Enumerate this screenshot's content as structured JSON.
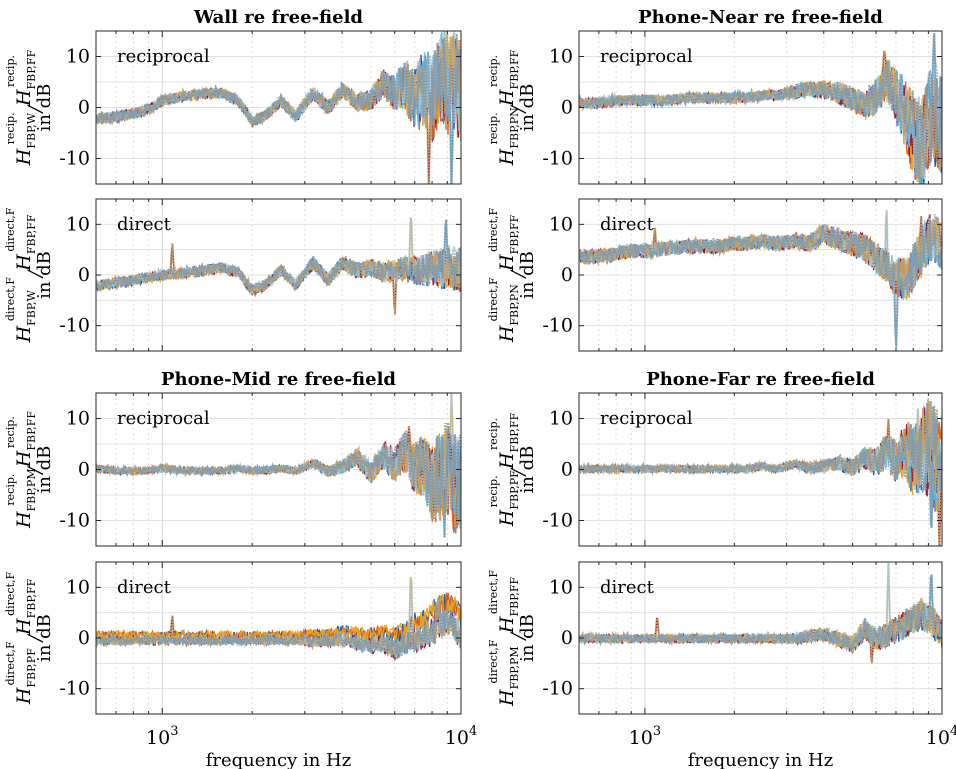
{
  "figure": {
    "xlabel": "frequency in Hz",
    "ylabel_unit": "in dB",
    "colors": [
      "#0b56b0",
      "#e05a12",
      "#eaa31a",
      "#9b1030",
      "#5bbbe8",
      "#a9c4d4",
      "#c7a060",
      "#7f9cb0",
      "#c97a6a",
      "#2c8fd6"
    ]
  },
  "chart_data": [
    {
      "type": "line",
      "title": "Wall re free-field",
      "subtitle": "reciprocal",
      "ylabel_sup": "recip.",
      "ylabel_sub_a": "FBP,W",
      "ylabel_sub_b": "FBP,FF",
      "xscale": "log",
      "xlim": [
        600,
        10000
      ],
      "ylim": [
        -15,
        15
      ],
      "x_ticks": [
        1000,
        10000
      ],
      "x_tick_labels": [
        "10^3",
        "10^4"
      ],
      "y_ticks": [
        -10,
        0,
        10
      ],
      "y_tick_labels": [
        "-10",
        "0",
        "10"
      ],
      "grid": true,
      "x": [
        600,
        700,
        800,
        900,
        1000,
        1200,
        1400,
        1600,
        1800,
        2000,
        2200,
        2500,
        2800,
        3200,
        3600,
        4000,
        4500,
        5000,
        5500,
        6000,
        6500,
        7000,
        7500,
        8000,
        8500,
        9000,
        9500,
        10000
      ],
      "trend": [
        -2.5,
        -2,
        -1.5,
        -0.5,
        1,
        2,
        2.5,
        2.5,
        1,
        -3,
        -2,
        1,
        -2,
        2.5,
        -0.5,
        3,
        0.5,
        1,
        4,
        2,
        3,
        0,
        2,
        -1,
        4,
        2,
        3,
        0
      ],
      "spread": [
        1.5,
        1.5,
        1.5,
        1.5,
        1.5,
        1.5,
        1.5,
        1.5,
        1.5,
        1.5,
        1.5,
        1.5,
        1.8,
        2,
        2,
        2.2,
        2.5,
        3,
        4,
        5,
        7,
        9,
        11,
        12,
        13,
        14,
        14,
        14
      ],
      "peaks": [
        [
          6500,
          8
        ],
        [
          8800,
          16
        ],
        [
          9300,
          -18
        ],
        [
          7800,
          -16
        ]
      ],
      "series": [
        {},
        {},
        {},
        {},
        {},
        {},
        {},
        {}
      ]
    },
    {
      "type": "line",
      "title": "Phone-Near re free-field",
      "subtitle": "reciprocal",
      "ylabel_sup": "recip.",
      "ylabel_sub_a": "FBP,PN",
      "ylabel_sub_b": "FBP,FF",
      "xscale": "log",
      "xlim": [
        600,
        10000
      ],
      "ylim": [
        -15,
        15
      ],
      "x_ticks": [
        1000,
        10000
      ],
      "x_tick_labels": [
        "10^3",
        "10^4"
      ],
      "y_ticks": [
        -10,
        0,
        10
      ],
      "y_tick_labels": [
        "-10",
        "0",
        "10"
      ],
      "grid": true,
      "x": [
        600,
        700,
        800,
        900,
        1000,
        1200,
        1400,
        1600,
        1800,
        2000,
        2200,
        2500,
        2800,
        3200,
        3600,
        4000,
        4500,
        5000,
        5500,
        6000,
        6500,
        7000,
        7500,
        8000,
        8500,
        9000,
        9500,
        10000
      ],
      "trend": [
        1.5,
        1.5,
        2,
        2,
        2,
        2,
        2.5,
        2.5,
        2.5,
        2.5,
        2.5,
        3,
        3,
        4,
        4.5,
        4.5,
        4,
        3,
        2,
        4,
        8,
        6,
        3,
        0,
        -2,
        2,
        4,
        2
      ],
      "spread": [
        1.5,
        1.5,
        1.5,
        1.5,
        1.5,
        1.5,
        1.5,
        1.5,
        1.5,
        1.5,
        1.5,
        1.5,
        1.5,
        2,
        2.2,
        2.5,
        3,
        3.5,
        4,
        5,
        6,
        8,
        10,
        12,
        13,
        14,
        14,
        14
      ],
      "peaks": [
        [
          6400,
          12
        ],
        [
          8200,
          -16
        ],
        [
          9400,
          16
        ],
        [
          9700,
          -16
        ]
      ],
      "series": [
        {},
        {},
        {},
        {},
        {},
        {},
        {},
        {}
      ]
    },
    {
      "type": "line",
      "title": "",
      "subtitle": "direct",
      "ylabel_sup": "direct,F",
      "ylabel_sub_a": "FBP,W",
      "ylabel_sub_b": "FBP,FF",
      "xscale": "log",
      "xlim": [
        600,
        10000
      ],
      "ylim": [
        -15,
        15
      ],
      "x_ticks": [
        1000,
        10000
      ],
      "x_tick_labels": [
        "10^3",
        "10^4"
      ],
      "y_ticks": [
        -10,
        0,
        10
      ],
      "y_tick_labels": [
        "-10",
        "0",
        "10"
      ],
      "grid": true,
      "x": [
        600,
        700,
        800,
        900,
        1000,
        1200,
        1400,
        1600,
        1800,
        2000,
        2200,
        2500,
        2800,
        3200,
        3600,
        4000,
        4500,
        5000,
        5500,
        6000,
        6500,
        7000,
        7500,
        8000,
        8500,
        9000,
        9500,
        10000
      ],
      "trend": [
        -2,
        -1.5,
        -1,
        -0.5,
        0,
        0.5,
        1,
        1.5,
        0.5,
        -3,
        -2,
        1,
        -2,
        2.5,
        -1,
        2.5,
        1,
        1.5,
        0.5,
        1,
        1.5,
        1,
        1,
        1.5,
        1.5,
        2,
        1.5,
        1
      ],
      "spread": [
        1.5,
        1.5,
        1.5,
        1.5,
        1.5,
        1.5,
        1.5,
        1.5,
        1.5,
        1.5,
        1.5,
        1.5,
        1.5,
        1.8,
        2,
        2,
        2.2,
        2.5,
        2.8,
        3,
        3.5,
        4,
        4.5,
        5,
        5.5,
        6,
        6,
        6
      ],
      "peaks": [
        [
          1080,
          7
        ],
        [
          6800,
          14
        ],
        [
          8900,
          13
        ],
        [
          6000,
          -9
        ]
      ],
      "series": [
        {},
        {},
        {},
        {},
        {},
        {},
        {},
        {}
      ]
    },
    {
      "type": "line",
      "title": "",
      "subtitle": "direct",
      "ylabel_sup": "direct,F",
      "ylabel_sub_a": "FBP,PN",
      "ylabel_sub_b": "FBP,FF",
      "xscale": "log",
      "xlim": [
        600,
        10000
      ],
      "ylim": [
        -15,
        15
      ],
      "x_ticks": [
        1000,
        10000
      ],
      "x_tick_labels": [
        "10^3",
        "10^4"
      ],
      "y_ticks": [
        -10,
        0,
        10
      ],
      "y_tick_labels": [
        "-10",
        "0",
        "10"
      ],
      "grid": true,
      "x": [
        600,
        700,
        800,
        900,
        1000,
        1200,
        1400,
        1600,
        1800,
        2000,
        2200,
        2500,
        2800,
        3200,
        3600,
        4000,
        4500,
        5000,
        5500,
        6000,
        6500,
        7000,
        7500,
        8000,
        8500,
        9000,
        9500,
        10000
      ],
      "trend": [
        3,
        3,
        3.5,
        4,
        4,
        4.5,
        5,
        5,
        5,
        5.5,
        5.5,
        6,
        5.5,
        6,
        5.5,
        7,
        6,
        5,
        4,
        2,
        0,
        -2,
        -3,
        -1,
        2,
        5,
        5,
        3
      ],
      "spread": [
        2,
        2,
        2,
        2,
        2,
        2,
        2,
        2,
        2,
        2,
        2,
        2,
        2,
        2.2,
        2.5,
        3,
        3.2,
        3.5,
        4,
        4.5,
        5,
        5.5,
        6,
        6.5,
        7,
        7,
        7,
        7
      ],
      "peaks": [
        [
          1080,
          10
        ],
        [
          6500,
          15
        ],
        [
          7000,
          -16
        ],
        [
          8500,
          13
        ]
      ],
      "series": [
        {},
        {},
        {},
        {},
        {},
        {},
        {},
        {}
      ]
    },
    {
      "type": "line",
      "title": "Phone-Mid re free-field",
      "subtitle": "reciprocal",
      "ylabel_sup": "recip.",
      "ylabel_sub_a": "FBP,PM",
      "ylabel_sub_b": "FBP,FF",
      "xscale": "log",
      "xlim": [
        600,
        10000
      ],
      "ylim": [
        -15,
        15
      ],
      "x_ticks": [
        1000,
        10000
      ],
      "x_tick_labels": [
        "10^3",
        "10^4"
      ],
      "y_ticks": [
        -10,
        0,
        10
      ],
      "y_tick_labels": [
        "-10",
        "0",
        "10"
      ],
      "grid": true,
      "x": [
        600,
        700,
        800,
        900,
        1000,
        1200,
        1400,
        1600,
        1800,
        2000,
        2200,
        2500,
        2800,
        3200,
        3600,
        4000,
        4500,
        5000,
        5500,
        6000,
        6500,
        7000,
        7500,
        8000,
        8500,
        9000,
        9500,
        10000
      ],
      "trend": [
        0.5,
        0,
        0,
        0,
        0.5,
        0,
        0,
        0,
        0.5,
        0,
        0,
        0.5,
        0,
        1.5,
        0,
        1,
        3,
        0,
        4,
        2,
        5,
        2,
        3,
        0,
        2,
        4,
        1,
        0
      ],
      "spread": [
        1,
        1,
        1,
        1,
        1,
        1,
        1,
        1,
        1,
        1,
        1,
        1,
        1,
        1.2,
        1.5,
        2,
        2.5,
        3,
        4,
        5,
        6,
        7,
        9,
        11,
        13,
        14,
        14,
        14
      ],
      "peaks": [
        [
          6700,
          9
        ],
        [
          9300,
          16
        ],
        [
          8800,
          -14
        ],
        [
          9700,
          -15
        ]
      ],
      "series": [
        {},
        {},
        {},
        {},
        {},
        {},
        {},
        {}
      ]
    },
    {
      "type": "line",
      "title": "Phone-Far re free-field",
      "subtitle": "reciprocal",
      "ylabel_sup": "recip.",
      "ylabel_sub_a": "FBP,PF",
      "ylabel_sub_b": "FBP,FF",
      "xscale": "log",
      "xlim": [
        600,
        10000
      ],
      "ylim": [
        -15,
        15
      ],
      "x_ticks": [
        1000,
        10000
      ],
      "x_tick_labels": [
        "10^3",
        "10^4"
      ],
      "y_ticks": [
        -10,
        0,
        10
      ],
      "y_tick_labels": [
        "-10",
        "0",
        "10"
      ],
      "grid": true,
      "x": [
        600,
        700,
        800,
        900,
        1000,
        1200,
        1400,
        1600,
        1800,
        2000,
        2200,
        2500,
        2800,
        3200,
        3600,
        4000,
        4500,
        5000,
        5500,
        6000,
        6500,
        7000,
        7500,
        8000,
        8500,
        9000,
        9500,
        10000
      ],
      "trend": [
        0,
        0,
        0,
        0,
        0,
        0,
        0,
        0,
        0,
        0,
        0,
        0.5,
        0,
        1,
        0,
        0.5,
        1,
        0,
        2,
        1,
        3,
        1,
        3,
        0,
        2,
        3,
        0,
        0
      ],
      "spread": [
        1,
        1,
        1,
        1,
        1,
        1,
        1,
        1,
        1,
        1,
        1,
        1,
        1,
        1.2,
        1.5,
        1.8,
        2,
        2.5,
        3,
        4,
        5,
        6,
        8,
        10,
        12,
        14,
        14,
        14
      ],
      "peaks": [
        [
          6600,
          10
        ],
        [
          8300,
          13
        ],
        [
          9200,
          -15
        ],
        [
          9800,
          -16
        ]
      ],
      "series": [
        {},
        {},
        {},
        {},
        {},
        {},
        {},
        {}
      ]
    },
    {
      "type": "line",
      "title": "",
      "subtitle": "direct",
      "ylabel_sup": "direct,F",
      "ylabel_sub_a": "FBP,PF",
      "ylabel_sub_b": "FBP,FF",
      "xscale": "log",
      "xlim": [
        600,
        10000
      ],
      "ylim": [
        -15,
        15
      ],
      "x_ticks": [
        1000,
        10000
      ],
      "x_tick_labels": [
        "10^3",
        "10^4"
      ],
      "y_ticks": [
        -10,
        0,
        10
      ],
      "y_tick_labels": [
        "-10",
        "0",
        "10"
      ],
      "grid": true,
      "x": [
        600,
        700,
        800,
        900,
        1000,
        1200,
        1400,
        1600,
        1800,
        2000,
        2200,
        2500,
        2800,
        3200,
        3600,
        4000,
        4500,
        5000,
        5500,
        6000,
        6500,
        7000,
        7500,
        8000,
        8500,
        9000,
        9500,
        10000
      ],
      "trend": [
        0,
        0,
        0,
        0,
        0,
        0,
        0,
        0,
        0,
        0,
        0,
        0,
        0,
        0,
        0,
        0.5,
        0,
        -0.5,
        0,
        -1,
        0,
        1,
        2,
        3,
        4,
        5,
        4,
        2
      ],
      "spread": [
        1.2,
        1.2,
        1.2,
        1.2,
        1.2,
        1.2,
        1.2,
        1.2,
        1.2,
        1.2,
        1.2,
        1.2,
        1.2,
        1.5,
        1.5,
        1.8,
        2,
        2.2,
        2.5,
        3,
        3,
        3.5,
        3.5,
        4,
        4,
        4,
        4,
        4
      ],
      "peaks": [
        [
          1080,
          5
        ],
        [
          6800,
          15
        ],
        [
          8400,
          8
        ]
      ],
      "series": [
        {},
        {},
        {},
        {},
        {},
        {},
        {},
        {}
      ]
    },
    {
      "type": "line",
      "title": "",
      "subtitle": "direct",
      "ylabel_sup": "direct,F",
      "ylabel_sub_a": "FBP,PM",
      "ylabel_sub_b": "FBP,FF",
      "xscale": "log",
      "xlim": [
        600,
        10000
      ],
      "ylim": [
        -15,
        15
      ],
      "x_ticks": [
        1000,
        10000
      ],
      "x_tick_labels": [
        "10^3",
        "10^4"
      ],
      "y_ticks": [
        -10,
        0,
        10
      ],
      "y_tick_labels": [
        "-10",
        "0",
        "10"
      ],
      "grid": true,
      "x": [
        600,
        700,
        800,
        900,
        1000,
        1200,
        1400,
        1600,
        1800,
        2000,
        2200,
        2500,
        2800,
        3200,
        3600,
        4000,
        4500,
        5000,
        5500,
        6000,
        6500,
        7000,
        7500,
        8000,
        8500,
        9000,
        9500,
        10000
      ],
      "trend": [
        0,
        0,
        0,
        0,
        0,
        0,
        0,
        0,
        0,
        0,
        0,
        0,
        0,
        0,
        0.5,
        1,
        0,
        -1,
        2,
        0,
        1,
        2,
        3,
        4,
        5,
        4,
        3,
        1
      ],
      "spread": [
        1.2,
        1.2,
        1.2,
        1.2,
        1.2,
        1.2,
        1.2,
        1.2,
        1.2,
        1.2,
        1.2,
        1.2,
        1.2,
        1.5,
        1.8,
        2,
        2.2,
        2.5,
        3,
        3.2,
        3.5,
        3.8,
        4,
        4,
        4.2,
        4.5,
        4.5,
        4.5
      ],
      "peaks": [
        [
          1100,
          5
        ],
        [
          6600,
          15
        ],
        [
          9200,
          15
        ],
        [
          5800,
          -6
        ]
      ],
      "series": [
        {},
        {},
        {},
        {},
        {},
        {},
        {},
        {}
      ]
    }
  ]
}
